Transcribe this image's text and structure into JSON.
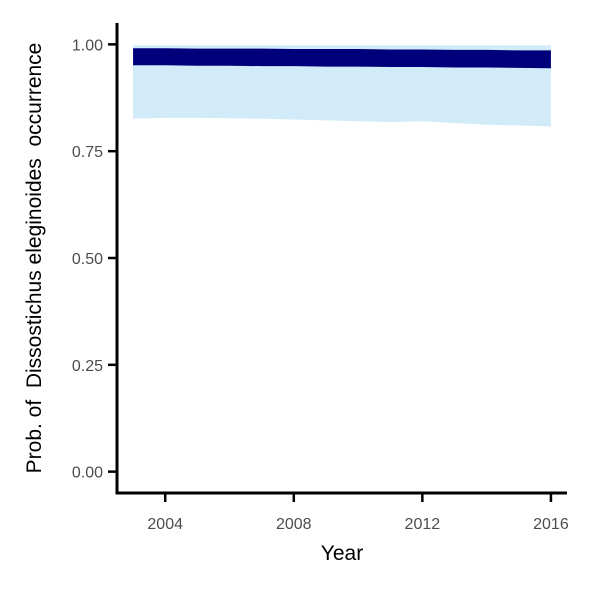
{
  "chart_data": {
    "type": "area",
    "title": "",
    "xlabel": "Year",
    "ylabel": "Prob. of  Dissostichus eleginoides  occurrence",
    "xlim": [
      2002.5,
      2016.5
    ],
    "ylim": [
      -0.05,
      1.05
    ],
    "x_ticks": [
      2004,
      2008,
      2012,
      2016
    ],
    "y_ticks": [
      0.0,
      0.25,
      0.5,
      0.75,
      1.0
    ],
    "x_tick_labels": [
      "2004",
      "2008",
      "2012",
      "2016"
    ],
    "y_tick_labels": [
      "0.00",
      "0.25",
      "0.50",
      "0.75",
      "1.00"
    ],
    "grid": false,
    "legend": "none",
    "series": [
      {
        "x": [
          2003,
          2004,
          2005,
          2006,
          2007,
          2008,
          2009,
          2010,
          2011,
          2012,
          2013,
          2014,
          2015,
          2016
        ],
        "upper": [
          0.998,
          0.998,
          0.998,
          0.998,
          0.998,
          0.998,
          0.998,
          0.998,
          0.998,
          0.998,
          0.998,
          0.998,
          0.998,
          0.998
        ],
        "lower": [
          0.826,
          0.828,
          0.828,
          0.827,
          0.826,
          0.824,
          0.822,
          0.82,
          0.818,
          0.82,
          0.816,
          0.812,
          0.81,
          0.808
        ],
        "mean_upper": [
          0.991,
          0.991,
          0.99,
          0.99,
          0.99,
          0.989,
          0.989,
          0.989,
          0.988,
          0.988,
          0.987,
          0.987,
          0.986,
          0.986
        ],
        "mean_lower": [
          0.951,
          0.951,
          0.95,
          0.95,
          0.949,
          0.949,
          0.948,
          0.948,
          0.947,
          0.947,
          0.946,
          0.946,
          0.945,
          0.944
        ]
      }
    ],
    "colors": {
      "ci_fill": "#d1ecf8",
      "mean_fill": "#00007a",
      "axis": "#000000",
      "tick_text": "#4d4d4d"
    }
  }
}
